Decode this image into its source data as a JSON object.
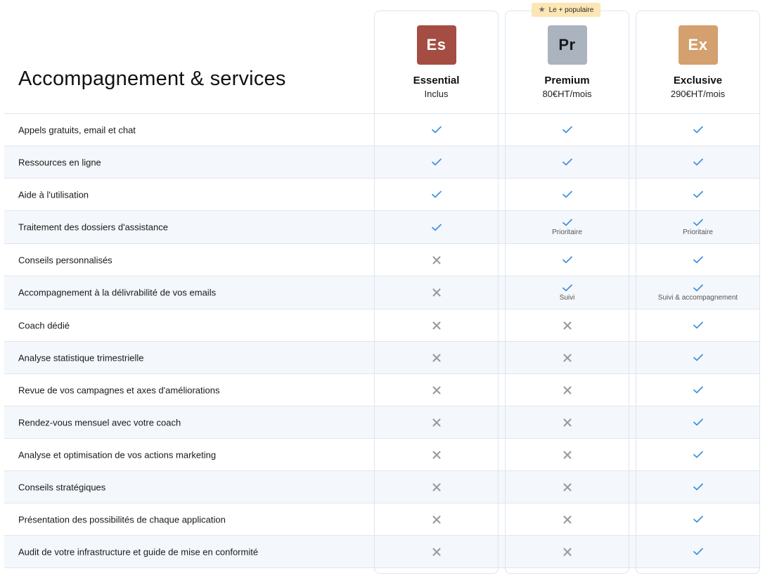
{
  "title": "Accompagnement & services",
  "popular_label": "Le + populaire",
  "plans": [
    {
      "abbr": "Es",
      "name": "Essential",
      "price": "Inclus",
      "color": "#a54d43"
    },
    {
      "abbr": "Pr",
      "name": "Premium",
      "price": "80€HT/mois",
      "color": "#abb4be"
    },
    {
      "abbr": "Ex",
      "name": "Exclusive",
      "price": "290€HT/mois",
      "color": "#d4a06f"
    }
  ],
  "colors": {
    "check": "#3d8fe0",
    "cross": "#9a9a9a",
    "row_alt": "#f4f7fb",
    "popular_bg": "#fbe6b4"
  },
  "rows": [
    {
      "label": "Appels gratuits, email et chat",
      "cells": [
        {
          "included": true
        },
        {
          "included": true
        },
        {
          "included": true
        }
      ]
    },
    {
      "label": "Ressources en ligne",
      "cells": [
        {
          "included": true
        },
        {
          "included": true
        },
        {
          "included": true
        }
      ]
    },
    {
      "label": "Aide à l'utilisation",
      "cells": [
        {
          "included": true
        },
        {
          "included": true
        },
        {
          "included": true
        }
      ]
    },
    {
      "label": "Traitement des dossiers d'assistance",
      "cells": [
        {
          "included": true
        },
        {
          "included": true,
          "note": "Prioritaire"
        },
        {
          "included": true,
          "note": "Prioritaire"
        }
      ]
    },
    {
      "label": "Conseils personnalisés",
      "cells": [
        {
          "included": false
        },
        {
          "included": true
        },
        {
          "included": true
        }
      ]
    },
    {
      "label": "Accompagnement à la délivrabilité de vos emails",
      "cells": [
        {
          "included": false
        },
        {
          "included": true,
          "note": "Suivi"
        },
        {
          "included": true,
          "note": "Suivi & accompagnement"
        }
      ]
    },
    {
      "label": "Coach dédié",
      "cells": [
        {
          "included": false
        },
        {
          "included": false
        },
        {
          "included": true
        }
      ]
    },
    {
      "label": "Analyse statistique trimestrielle",
      "cells": [
        {
          "included": false
        },
        {
          "included": false
        },
        {
          "included": true
        }
      ]
    },
    {
      "label": "Revue de vos campagnes et axes d'améliorations",
      "cells": [
        {
          "included": false
        },
        {
          "included": false
        },
        {
          "included": true
        }
      ]
    },
    {
      "label": "Rendez-vous mensuel avec votre coach",
      "cells": [
        {
          "included": false
        },
        {
          "included": false
        },
        {
          "included": true
        }
      ]
    },
    {
      "label": "Analyse et optimisation de vos actions marketing",
      "cells": [
        {
          "included": false
        },
        {
          "included": false
        },
        {
          "included": true
        }
      ]
    },
    {
      "label": "Conseils stratégiques",
      "cells": [
        {
          "included": false
        },
        {
          "included": false
        },
        {
          "included": true
        }
      ]
    },
    {
      "label": "Présentation des possibilités de chaque application",
      "cells": [
        {
          "included": false
        },
        {
          "included": false
        },
        {
          "included": true
        }
      ]
    },
    {
      "label": "Audit de votre infrastructure et guide de mise en conformité",
      "cells": [
        {
          "included": false
        },
        {
          "included": false
        },
        {
          "included": true
        }
      ]
    }
  ]
}
